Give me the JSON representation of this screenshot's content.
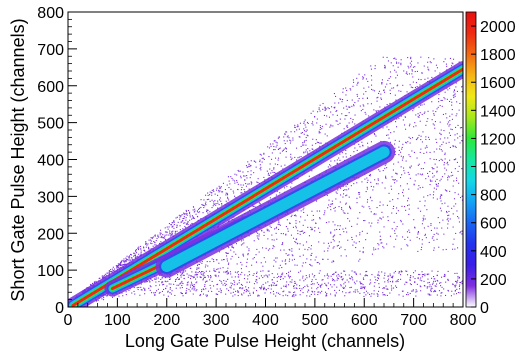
{
  "chart_data": {
    "type": "heatmap",
    "title": "",
    "xlabel": "Long Gate Pulse Height (channels)",
    "ylabel": "Short Gate Pulse Height (channels)",
    "xlim": [
      0,
      800
    ],
    "ylim": [
      0,
      800
    ],
    "x_ticks": [
      "0",
      "100",
      "200",
      "300",
      "400",
      "500",
      "600",
      "700",
      "800"
    ],
    "y_ticks": [
      "0",
      "100",
      "200",
      "300",
      "400",
      "500",
      "600",
      "700",
      "800"
    ],
    "colorbar": {
      "range": [
        0,
        2100
      ],
      "ticks": [
        "0",
        "200",
        "400",
        "600",
        "800",
        "1000",
        "1200",
        "1400",
        "1600",
        "1800",
        "2000"
      ],
      "colors": [
        "#ffffff",
        "#7f2fe0",
        "#3a1ee8",
        "#2233ee",
        "#1a66f2",
        "#15a3f5",
        "#15d8e6",
        "#16e8a0",
        "#2de83a",
        "#a8e81c",
        "#f0e817",
        "#f5b415",
        "#f26a13",
        "#ee2b12",
        "#e8100f"
      ]
    },
    "bands": [
      {
        "name": "",
        "x": [
          10,
          800
        ],
        "y": [
          4,
          645
        ],
        "peak": 2100
      },
      {
        "name": "",
        "x": [
          90,
          360
        ],
        "y": [
          50,
          225
        ],
        "peak": 2100
      },
      {
        "name": "",
        "x": [
          200,
          640
        ],
        "y": [
          110,
          420
        ],
        "peak": 700
      }
    ],
    "grid": false,
    "legend": "colorbar-right"
  }
}
